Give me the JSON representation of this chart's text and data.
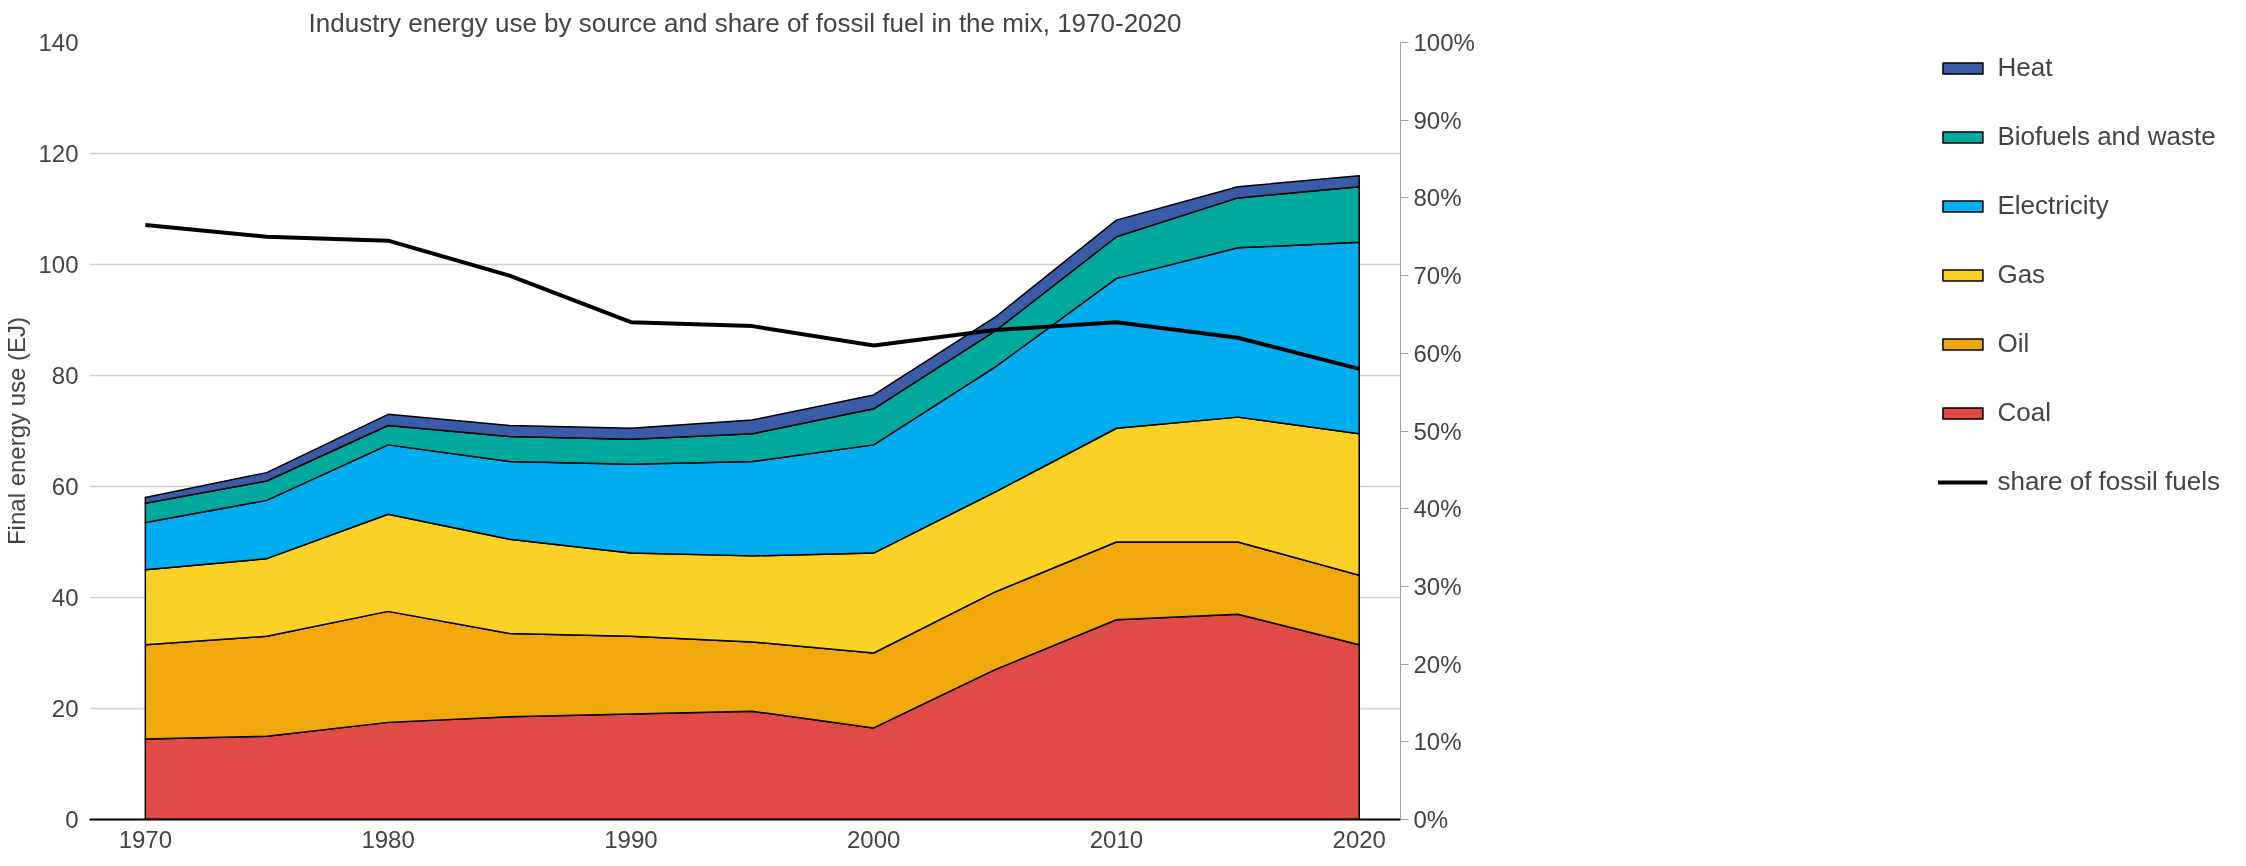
{
  "chart_data": {
    "type": "area",
    "stacked": true,
    "title": "Industry energy use by source and share of fossil fuel in the mix, 1970-2020",
    "ylabel": "Final energy use (EJ)",
    "x": [
      1970,
      1975,
      1980,
      1985,
      1990,
      1995,
      2000,
      2005,
      2010,
      2015,
      2020
    ],
    "series": [
      {
        "name": "Coal",
        "color": "#e04b45",
        "values": [
          14.5,
          15,
          17.5,
          18.5,
          19,
          19.5,
          16.5,
          27,
          36,
          37,
          31.5
        ]
      },
      {
        "name": "Oil",
        "color": "#f0a80a",
        "values": [
          17,
          18,
          20,
          15,
          14,
          12.5,
          13.5,
          14,
          14,
          13,
          12.5
        ]
      },
      {
        "name": "Gas",
        "color": "#fcd126",
        "values": [
          13.5,
          14,
          17.5,
          17,
          15,
          15.5,
          18,
          18,
          20.5,
          22.5,
          25.5
        ]
      },
      {
        "name": "Electricity",
        "color": "#00aeef",
        "values": [
          8.5,
          10.5,
          12.5,
          14,
          16,
          17,
          19.5,
          22.5,
          27,
          30.5,
          34.5
        ]
      },
      {
        "name": "Biofuels and waste",
        "color": "#00a99d",
        "values": [
          3.5,
          3.5,
          3.5,
          4.5,
          4.5,
          5,
          6.5,
          6.5,
          7.5,
          9,
          10
        ]
      },
      {
        "name": "Heat",
        "color": "#3a5ba8",
        "values": [
          1,
          1.5,
          2,
          2,
          2,
          2.5,
          2.5,
          2.5,
          3,
          2,
          2
        ]
      },
      {
        "name": "share of fossil fuels",
        "type": "line",
        "axis": "y2",
        "color": "#000000",
        "values": [
          76.5,
          75,
          74.5,
          70,
          64,
          63.5,
          61,
          63,
          64,
          62,
          58
        ]
      }
    ],
    "xlim": [
      1967.7,
      2021.7
    ],
    "xticks": [
      1970,
      1980,
      1990,
      2000,
      2010,
      2020
    ],
    "ylim": [
      0,
      140
    ],
    "yticks": [
      0,
      20,
      40,
      60,
      80,
      100,
      120,
      140
    ],
    "y2lim": [
      0,
      100
    ],
    "y2ticks": [
      {
        "value": 0,
        "label": "0%"
      },
      {
        "value": 10,
        "label": "10%"
      },
      {
        "value": 20,
        "label": "20%"
      },
      {
        "value": 30,
        "label": "30%"
      },
      {
        "value": 40,
        "label": "40%"
      },
      {
        "value": 50,
        "label": "50%"
      },
      {
        "value": 60,
        "label": "60%"
      },
      {
        "value": 70,
        "label": "70%"
      },
      {
        "value": 80,
        "label": "80%"
      },
      {
        "value": 90,
        "label": "90%"
      },
      {
        "value": 100,
        "label": "100%"
      }
    ],
    "grid": "y",
    "legend": "right"
  }
}
